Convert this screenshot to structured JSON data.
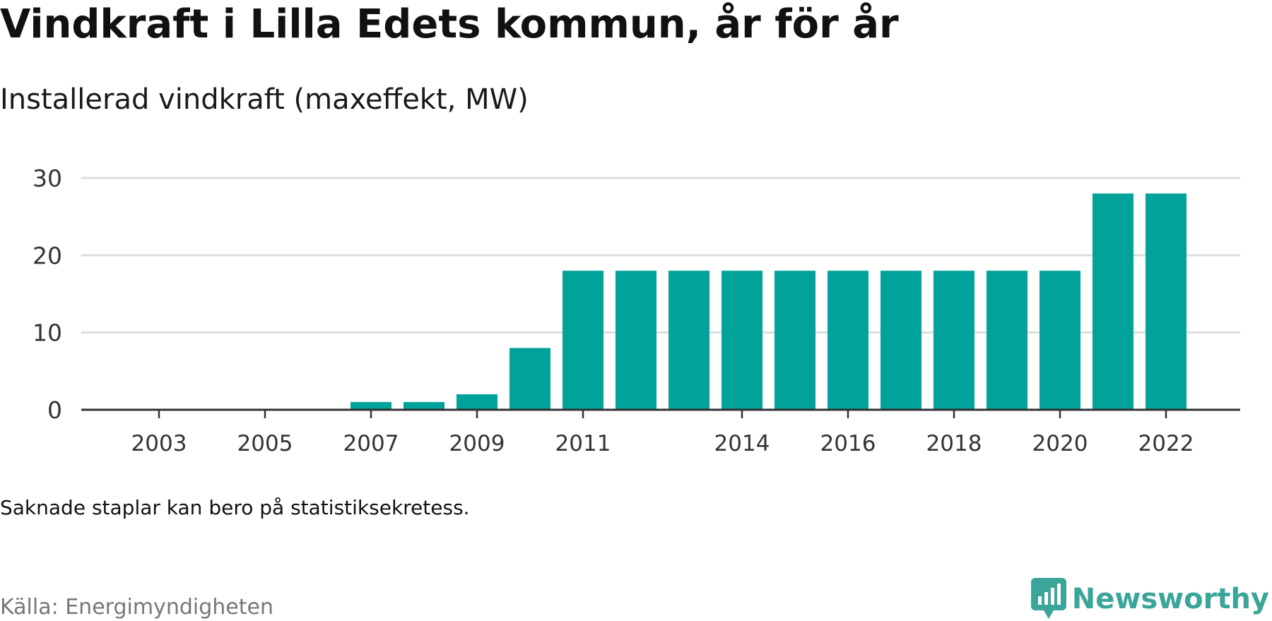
{
  "header": {
    "title": "Vindkraft i Lilla Edets kommun, år för år",
    "subtitle": "Installerad vindkraft (maxeffekt, MW)"
  },
  "footer": {
    "note": "Saknade staplar kan bero på statistiksekretess.",
    "source": "Källa: Energimyndigheten",
    "brand": "Newsworthy",
    "brand_icon": "newsworthy-logo-icon"
  },
  "colors": {
    "bar": "#00a29a",
    "grid": "#dddddd",
    "axis": "#333333",
    "brand": "#3ba59a"
  },
  "chart_data": {
    "type": "bar",
    "title": "Vindkraft i Lilla Edets kommun, år för år",
    "subtitle": "Installerad vindkraft (maxeffekt, MW)",
    "xlabel": "",
    "ylabel": "",
    "categories": [
      2002,
      2003,
      2004,
      2005,
      2006,
      2007,
      2008,
      2009,
      2010,
      2011,
      2012,
      2013,
      2014,
      2015,
      2016,
      2017,
      2018,
      2019,
      2020,
      2021,
      2022
    ],
    "values": [
      null,
      null,
      null,
      null,
      0,
      1,
      1,
      2,
      8,
      18,
      18,
      18,
      18,
      18,
      18,
      18,
      18,
      18,
      18,
      28,
      28
    ],
    "x_tick_labels": [
      "2003",
      "2005",
      "2007",
      "2009",
      "2011",
      "2014",
      "2016",
      "2018",
      "2020",
      "2022"
    ],
    "y_ticks": [
      "0",
      "10",
      "20",
      "30"
    ],
    "ylim": [
      0,
      30
    ],
    "grid": true,
    "legend": "none"
  }
}
